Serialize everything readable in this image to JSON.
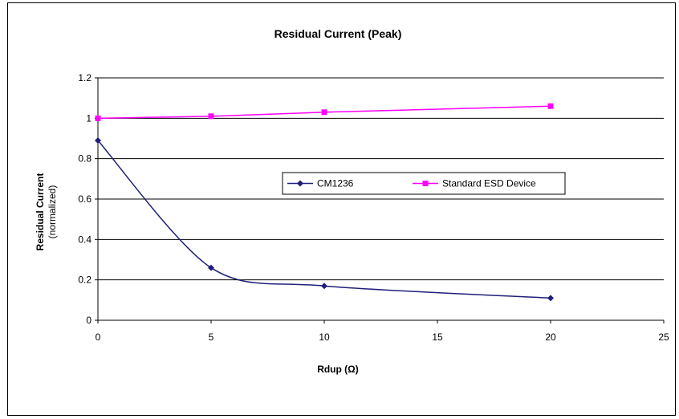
{
  "chart_data": {
    "type": "line",
    "title": "Residual Current (Peak)",
    "xlabel": "Rdup (Ω)",
    "ylabel_line1": "Residual Current",
    "ylabel_line2": "(normalized)",
    "xlim": [
      0,
      25
    ],
    "ylim": [
      0,
      1.2
    ],
    "x_ticks": [
      "0",
      "5",
      "10",
      "15",
      "20",
      "25"
    ],
    "y_ticks": [
      "0",
      "0.2",
      "0.4",
      "0.6",
      "0.8",
      "1",
      "1.2"
    ],
    "grid": "horizontal major gridlines",
    "legend_position": "center-right inside plot",
    "series": [
      {
        "name": "CM1236",
        "color": "#1f1f7a",
        "marker": "diamond",
        "smooth": true,
        "points": [
          {
            "x": 0,
            "y": 0.89
          },
          {
            "x": 5,
            "y": 0.26
          },
          {
            "x": 10,
            "y": 0.17
          },
          {
            "x": 20,
            "y": 0.11
          }
        ]
      },
      {
        "name": "Standard ESD Device",
        "color": "#ff00ff",
        "marker": "square",
        "smooth": false,
        "points": [
          {
            "x": 0,
            "y": 1.0
          },
          {
            "x": 5,
            "y": 1.01
          },
          {
            "x": 10,
            "y": 1.03
          },
          {
            "x": 20,
            "y": 1.06
          }
        ]
      }
    ]
  }
}
